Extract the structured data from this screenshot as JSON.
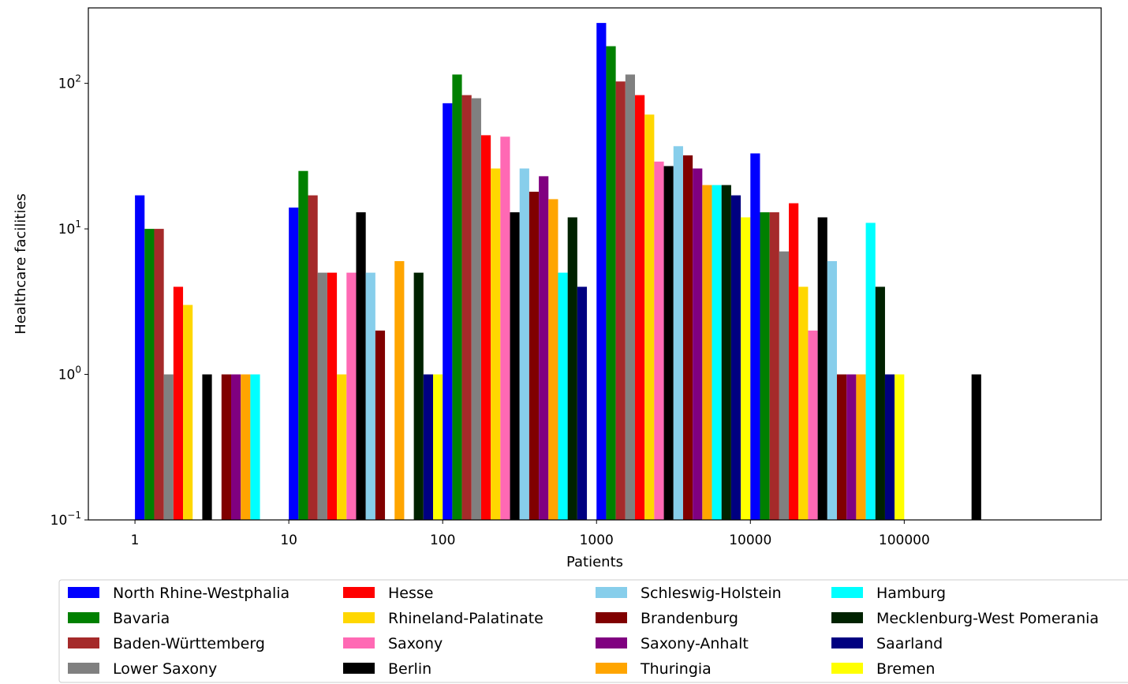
{
  "chart_data": {
    "type": "bar",
    "title": "",
    "xlabel": "Patients",
    "ylabel": "Healthcare facilities",
    "x_scale": "log",
    "y_scale": "log",
    "x_ticks": [
      1,
      10,
      100,
      1000,
      10000,
      100000
    ],
    "x_tick_labels": [
      "1",
      "10",
      "100",
      "1000",
      "10000",
      "100000"
    ],
    "y_ticks": [
      0.1,
      1,
      10,
      100
    ],
    "y_tick_labels": [
      {
        "base": "10",
        "exp": "−1"
      },
      {
        "base": "10",
        "exp": "0"
      },
      {
        "base": "10",
        "exp": "1"
      },
      {
        "base": "10",
        "exp": "2"
      }
    ],
    "ylim": [
      0.1,
      330
    ],
    "grid": false,
    "legend_placement": "bottom",
    "bin_starts": [
      1,
      10,
      100,
      1000,
      10000,
      100000
    ],
    "series": [
      {
        "name": "North Rhine-Westphalia",
        "color": "#0000ff",
        "values": [
          17,
          14,
          73,
          260,
          33,
          0
        ]
      },
      {
        "name": "Bavaria",
        "color": "#008000",
        "values": [
          10,
          25,
          115,
          180,
          13,
          0
        ]
      },
      {
        "name": "Baden-Württemberg",
        "color": "#a52a2a",
        "values": [
          10,
          17,
          83,
          103,
          13,
          0
        ]
      },
      {
        "name": "Lower Saxony",
        "color": "#808080",
        "values": [
          1,
          5,
          79,
          115,
          7,
          0
        ]
      },
      {
        "name": "Hesse",
        "color": "#ff0000",
        "values": [
          4,
          5,
          44,
          83,
          15,
          0
        ]
      },
      {
        "name": "Rhineland-Palatinate",
        "color": "#ffd700",
        "values": [
          3,
          1,
          26,
          61,
          4,
          0
        ]
      },
      {
        "name": "Saxony",
        "color": "#ff69b4",
        "values": [
          0,
          5,
          43,
          29,
          2,
          0
        ]
      },
      {
        "name": "Berlin",
        "color": "#000000",
        "values": [
          1,
          13,
          13,
          27,
          12,
          1
        ]
      },
      {
        "name": "Schleswig-Holstein",
        "color": "#87ceeb",
        "values": [
          0,
          5,
          26,
          37,
          6,
          0
        ]
      },
      {
        "name": "Brandenburg",
        "color": "#800000",
        "values": [
          1,
          2,
          18,
          32,
          1,
          0
        ]
      },
      {
        "name": "Saxony-Anhalt",
        "color": "#800080",
        "values": [
          1,
          0,
          23,
          26,
          1,
          0
        ]
      },
      {
        "name": "Thuringia",
        "color": "#ffa500",
        "values": [
          1,
          6,
          16,
          20,
          1,
          0
        ]
      },
      {
        "name": "Hamburg",
        "color": "#00ffff",
        "values": [
          1,
          0,
          5,
          20,
          11,
          0
        ]
      },
      {
        "name": "Mecklenburg-West Pomerania",
        "color": "#002200",
        "values": [
          0,
          5,
          12,
          20,
          4,
          0
        ]
      },
      {
        "name": "Saarland",
        "color": "#000080",
        "values": [
          0,
          1,
          4,
          17,
          1,
          0
        ]
      },
      {
        "name": "Bremen",
        "color": "#ffff00",
        "values": [
          0,
          1,
          0,
          12,
          1,
          0
        ]
      }
    ]
  }
}
